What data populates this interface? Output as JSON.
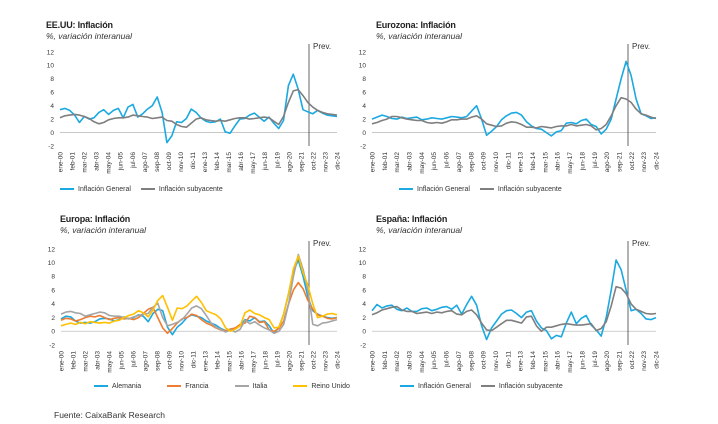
{
  "source": "Fuente: CaixaBank Research",
  "chart_data": [
    {
      "type": "line",
      "title": "EE.UU: Inflación",
      "subtitle": "%, variación interanual",
      "annotation": "Prev.",
      "ylim": [
        -2,
        12
      ],
      "yticks": [
        "-2",
        "0",
        "2",
        "4",
        "6",
        "8",
        "10",
        "12"
      ],
      "xticks": [
        "ene-00",
        "feb-01",
        "mar-02",
        "abr-03",
        "may-04",
        "jun-05",
        "jul-06",
        "ago-07",
        "sep-08",
        "oct-09",
        "nov-10",
        "dic-11",
        "ene-13",
        "feb-14",
        "mar-15",
        "abr-16",
        "may-17",
        "jun-18",
        "jul-19",
        "ago-20",
        "sep-21",
        "oct-22",
        "nov-23",
        "dic-24"
      ],
      "colors": [
        "#1ba9e1",
        "#7f7f7f"
      ],
      "series": [
        {
          "name": "Inflación General",
          "color": "#1ba9e1",
          "values": [
            3.4,
            3.6,
            3.3,
            2.6,
            1.5,
            2.4,
            2.0,
            2.2,
            3.0,
            3.4,
            2.7,
            3.3,
            3.6,
            2.2,
            3.8,
            4.2,
            2.3,
            2.8,
            3.5,
            4.0,
            5.3,
            3.0,
            -1.5,
            -0.5,
            1.6,
            1.5,
            2.1,
            3.5,
            3.0,
            2.2,
            1.7,
            1.5,
            1.6,
            2.0,
            0.1,
            -0.1,
            1.0,
            2.0,
            2.1,
            2.6,
            2.9,
            2.3,
            1.7,
            2.3,
            1.4,
            0.6,
            1.8,
            7.0,
            8.7,
            6.5,
            3.4,
            3.1,
            2.8,
            3.3,
            2.9,
            2.6,
            2.5,
            2.4
          ]
        },
        {
          "name": "Inflación subyacente",
          "color": "#7f7f7f",
          "values": [
            2.2,
            2.5,
            2.6,
            2.7,
            2.6,
            2.4,
            2.1,
            1.6,
            1.3,
            1.5,
            1.9,
            2.1,
            2.2,
            2.2,
            2.3,
            2.6,
            2.5,
            2.4,
            2.3,
            2.1,
            2.2,
            2.3,
            1.8,
            1.7,
            1.2,
            0.9,
            0.8,
            1.4,
            2.0,
            2.2,
            1.9,
            1.8,
            1.7,
            1.8,
            1.7,
            1.9,
            2.1,
            2.2,
            2.2,
            2.0,
            2.1,
            2.2,
            2.3,
            2.2,
            1.7,
            1.2,
            2.4,
            4.5,
            6.2,
            6.4,
            5.5,
            4.5,
            3.8,
            3.3,
            3.0,
            2.8,
            2.7,
            2.6
          ]
        }
      ]
    },
    {
      "type": "line",
      "title": "Eurozona: Inflación",
      "subtitle": "%, variación interanual",
      "annotation": "Prev.",
      "ylim": [
        -2,
        12
      ],
      "yticks": [
        "-2",
        "0",
        "2",
        "4",
        "6",
        "8",
        "10",
        "12"
      ],
      "xticks": [
        "ene-00",
        "feb-01",
        "mar-02",
        "abr-03",
        "may-04",
        "jun-05",
        "jul-06",
        "ago-07",
        "sep-08",
        "oct-09",
        "nov-10",
        "dic-11",
        "ene-13",
        "feb-14",
        "mar-15",
        "abr-16",
        "may-17",
        "jun-18",
        "jul-19",
        "ago-20",
        "sep-21",
        "oct-22",
        "nov-23",
        "dic-24"
      ],
      "colors": [
        "#1ba9e1",
        "#7f7f7f"
      ],
      "series": [
        {
          "name": "Inflación General",
          "color": "#1ba9e1",
          "values": [
            2.0,
            2.3,
            2.6,
            2.4,
            2.1,
            2.0,
            2.3,
            2.1,
            2.2,
            2.3,
            1.9,
            2.0,
            2.2,
            2.1,
            2.0,
            2.2,
            2.4,
            2.3,
            2.2,
            2.4,
            3.2,
            4.0,
            2.0,
            -0.4,
            0.2,
            0.9,
            1.9,
            2.5,
            2.9,
            3.0,
            2.6,
            1.6,
            1.0,
            0.6,
            0.5,
            0.0,
            -0.5,
            0.1,
            0.3,
            1.4,
            1.5,
            1.3,
            1.8,
            2.0,
            1.2,
            0.9,
            -0.2,
            0.5,
            2.0,
            5.0,
            8.0,
            10.6,
            8.5,
            5.0,
            2.8,
            2.5,
            2.1,
            2.2
          ]
        },
        {
          "name": "Inflación subyacente",
          "color": "#7f7f7f",
          "values": [
            1.3,
            1.5,
            1.8,
            2.0,
            2.4,
            2.4,
            2.2,
            2.0,
            1.9,
            1.8,
            1.8,
            1.5,
            1.4,
            1.5,
            1.4,
            1.6,
            1.9,
            1.9,
            2.0,
            2.0,
            2.3,
            2.5,
            2.0,
            1.3,
            1.1,
            0.9,
            1.0,
            1.4,
            1.6,
            1.5,
            1.2,
            0.8,
            0.8,
            0.7,
            0.9,
            0.8,
            0.7,
            0.9,
            1.0,
            1.0,
            1.2,
            1.0,
            1.1,
            1.2,
            1.0,
            0.4,
            0.6,
            1.2,
            2.5,
            4.0,
            5.2,
            5.0,
            4.5,
            3.5,
            2.8,
            2.6,
            2.3,
            2.1
          ]
        }
      ]
    },
    {
      "type": "line",
      "title": "Europa: Inflación",
      "subtitle": "%, variación interanual",
      "annotation": "Prev.",
      "ylim": [
        -2,
        12
      ],
      "yticks": [
        "-2",
        "0",
        "2",
        "4",
        "6",
        "8",
        "10",
        "12"
      ],
      "xticks": [
        "ene-00",
        "feb-01",
        "mar-02",
        "abr-03",
        "may-04",
        "jun-05",
        "jul-06",
        "ago-07",
        "sep-08",
        "oct-09",
        "nov-10",
        "dic-11",
        "ene-13",
        "feb-14",
        "mar-15",
        "abr-16",
        "may-17",
        "jun-18",
        "jul-19",
        "ago-20",
        "sep-21",
        "oct-22",
        "nov-23",
        "dic-24"
      ],
      "colors": [
        "#1ba9e1",
        "#ed7d31",
        "#a5a5a5",
        "#ffc000"
      ],
      "series": [
        {
          "name": "Alemania",
          "color": "#1ba9e1",
          "values": [
            1.8,
            2.2,
            2.1,
            1.5,
            1.2,
            1.3,
            1.2,
            1.4,
            1.8,
            1.9,
            1.8,
            1.5,
            1.7,
            2.1,
            1.8,
            2.0,
            2.4,
            2.2,
            1.4,
            2.6,
            3.2,
            3.0,
            0.6,
            -0.5,
            0.6,
            1.2,
            2.0,
            2.4,
            2.2,
            2.0,
            1.5,
            1.2,
            0.9,
            0.4,
            0.1,
            0.3,
            0.4,
            0.8,
            1.7,
            1.5,
            2.0,
            1.4,
            1.5,
            0.8,
            -0.3,
            0.6,
            2.5,
            5.5,
            8.7,
            10.4,
            8.0,
            5.0,
            3.0,
            2.5,
            2.2,
            2.0,
            1.9,
            2.0
          ]
        },
        {
          "name": "Francia",
          "color": "#ed7d31",
          "values": [
            1.6,
            1.9,
            1.8,
            1.5,
            1.7,
            2.0,
            2.2,
            2.1,
            2.3,
            2.0,
            1.7,
            1.9,
            2.0,
            1.8,
            1.9,
            1.7,
            2.0,
            2.6,
            3.2,
            3.5,
            2.0,
            0.5,
            -0.3,
            0.4,
            1.2,
            1.8,
            2.0,
            2.5,
            2.3,
            1.7,
            1.2,
            0.9,
            0.5,
            0.2,
            0.1,
            0.3,
            0.5,
            1.0,
            1.2,
            2.2,
            2.0,
            1.3,
            1.4,
            0.2,
            0.0,
            0.4,
            1.5,
            4.0,
            6.0,
            7.1,
            6.2,
            4.5,
            3.2,
            2.4,
            2.2,
            1.9,
            1.8,
            2.0
          ]
        },
        {
          "name": "Italia",
          "color": "#a5a5a5",
          "values": [
            2.5,
            2.8,
            2.9,
            2.7,
            2.6,
            2.2,
            2.4,
            2.6,
            2.8,
            2.7,
            2.3,
            2.2,
            2.2,
            2.0,
            1.8,
            2.1,
            2.3,
            2.5,
            2.6,
            3.5,
            4.1,
            2.0,
            0.8,
            1.0,
            1.3,
            1.7,
            2.5,
            3.4,
            3.7,
            3.3,
            2.3,
            1.2,
            0.6,
            0.3,
            -0.1,
            0.2,
            -0.1,
            0.3,
            1.6,
            1.1,
            1.4,
            0.9,
            0.5,
            0.2,
            -0.3,
            0.0,
            1.0,
            4.0,
            8.0,
            11.2,
            9.0,
            6.0,
            1.0,
            0.8,
            1.2,
            1.3,
            1.5,
            1.7
          ]
        },
        {
          "name": "Reino Unido",
          "color": "#ffc000",
          "values": [
            0.8,
            1.0,
            1.2,
            1.0,
            1.3,
            1.1,
            1.4,
            1.3,
            1.2,
            1.3,
            1.2,
            1.5,
            1.6,
            2.0,
            2.3,
            2.5,
            3.0,
            2.7,
            2.1,
            3.1,
            4.5,
            5.2,
            3.5,
            1.6,
            3.4,
            3.3,
            3.7,
            4.4,
            5.1,
            4.2,
            3.0,
            2.7,
            2.4,
            1.8,
            0.5,
            0.0,
            0.3,
            0.8,
            2.7,
            3.1,
            2.6,
            2.4,
            2.0,
            1.7,
            0.5,
            0.6,
            2.5,
            5.5,
            9.1,
            11.0,
            8.5,
            6.7,
            4.0,
            2.0,
            2.2,
            2.5,
            2.6,
            2.4
          ]
        }
      ]
    },
    {
      "type": "line",
      "title": "España: Inflación",
      "subtitle": "%, variación interanual",
      "annotation": "Prev.",
      "ylim": [
        -2,
        12
      ],
      "yticks": [
        "-2",
        "0",
        "2",
        "4",
        "6",
        "8",
        "10",
        "12"
      ],
      "xticks": [
        "ene-00",
        "feb-01",
        "mar-02",
        "abr-03",
        "may-04",
        "jun-05",
        "jul-06",
        "ago-07",
        "sep-08",
        "oct-09",
        "nov-10",
        "dic-11",
        "ene-13",
        "feb-14",
        "mar-15",
        "abr-16",
        "may-17",
        "jun-18",
        "jul-19",
        "ago-20",
        "sep-21",
        "oct-22",
        "nov-23",
        "dic-24"
      ],
      "colors": [
        "#1ba9e1",
        "#7f7f7f"
      ],
      "series": [
        {
          "name": "Inflación General",
          "color": "#1ba9e1",
          "values": [
            3.0,
            3.9,
            3.4,
            3.7,
            3.8,
            3.2,
            3.0,
            3.4,
            2.9,
            2.9,
            3.3,
            3.4,
            3.0,
            3.2,
            3.5,
            3.6,
            3.2,
            3.8,
            2.5,
            3.9,
            5.1,
            3.8,
            0.8,
            -1.2,
            0.5,
            1.5,
            2.5,
            3.0,
            3.1,
            2.6,
            2.0,
            2.8,
            3.0,
            1.5,
            0.5,
            0.1,
            -1.1,
            -0.6,
            -0.8,
            1.2,
            2.8,
            1.1,
            1.9,
            2.3,
            0.9,
            0.2,
            -0.7,
            2.0,
            6.0,
            10.4,
            9.0,
            6.0,
            3.0,
            3.2,
            2.6,
            1.8,
            1.7,
            2.0
          ]
        },
        {
          "name": "Inflación subyacente",
          "color": "#7f7f7f",
          "values": [
            2.4,
            2.7,
            3.1,
            3.3,
            3.5,
            3.6,
            3.1,
            2.9,
            2.9,
            2.6,
            2.7,
            2.8,
            2.6,
            2.8,
            2.7,
            2.9,
            3.0,
            2.5,
            2.4,
            2.9,
            3.1,
            2.4,
            1.2,
            0.2,
            0.1,
            0.6,
            1.1,
            1.6,
            1.6,
            1.4,
            1.2,
            2.1,
            2.2,
            0.8,
            0.0,
            0.6,
            0.6,
            0.8,
            1.0,
            1.1,
            1.0,
            0.9,
            0.9,
            1.0,
            1.1,
            0.1,
            0.4,
            1.4,
            3.7,
            6.5,
            6.3,
            5.5,
            4.0,
            3.2,
            2.9,
            2.6,
            2.5,
            2.6
          ]
        }
      ]
    }
  ]
}
